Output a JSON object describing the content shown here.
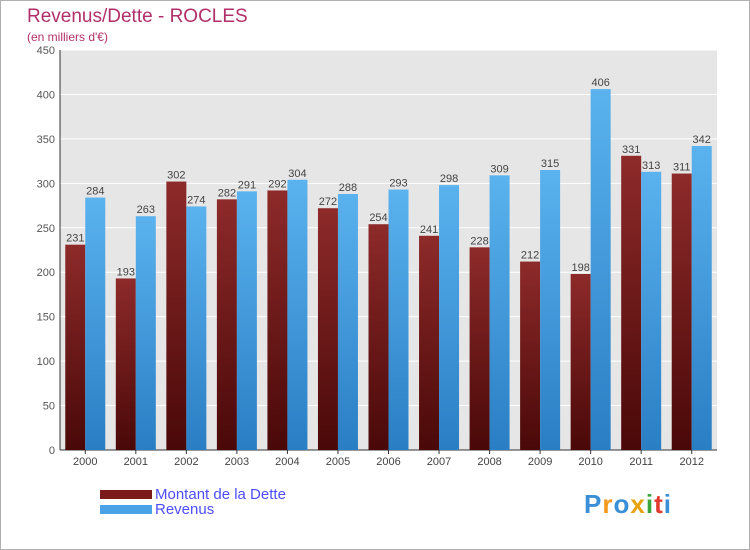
{
  "title": "Revenus/Dette - ROCLES",
  "subtitle": "(en milliers d'€)",
  "logo": {
    "text": "Proxiti",
    "colors": [
      "#3a8fd6",
      "#f29a1d",
      "#3a8fd6",
      "#e8a20c",
      "#3aa53a",
      "#e03a2f",
      "#3a8fd6"
    ]
  },
  "colors": {
    "dette": "#7a1a1a",
    "revenus": "#4aa3e6",
    "text": "#555555",
    "label_color": "#4d4dff",
    "title_color": "#b2306a"
  },
  "chart_data": {
    "type": "bar",
    "title": "Revenus/Dette - ROCLES",
    "subtitle": "(en milliers d'€)",
    "categories": [
      "2000",
      "2001",
      "2002",
      "2003",
      "2004",
      "2005",
      "2006",
      "2007",
      "2008",
      "2009",
      "2010",
      "2011",
      "2012"
    ],
    "series": [
      {
        "name": "Montant de la Dette",
        "values": [
          231,
          193,
          302,
          282,
          292,
          272,
          254,
          241,
          228,
          212,
          198,
          331,
          311
        ]
      },
      {
        "name": "Revenus",
        "values": [
          284,
          263,
          274,
          291,
          304,
          288,
          293,
          298,
          309,
          315,
          406,
          313,
          342
        ]
      }
    ],
    "ylim": [
      0,
      450
    ],
    "yticks": [
      0,
      50,
      100,
      150,
      200,
      250,
      300,
      350,
      400,
      450
    ],
    "grid": true,
    "legend_position": "bottom-left"
  }
}
